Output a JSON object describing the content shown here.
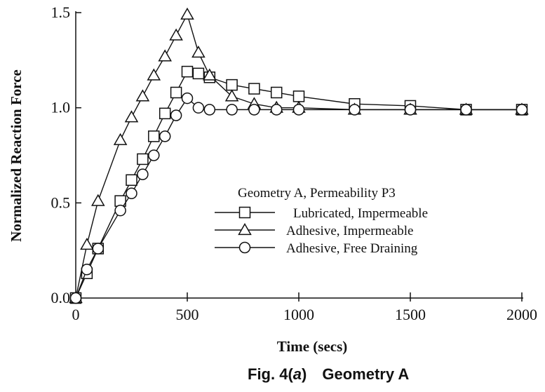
{
  "chart_data": {
    "type": "line",
    "title": "",
    "xlabel": "Time  (secs)",
    "ylabel": "Normalized Reaction Force",
    "xlim": [
      0,
      2000
    ],
    "ylim": [
      0,
      1.5
    ],
    "x_ticks": [
      "0",
      "500",
      "1000",
      "1500",
      "2000"
    ],
    "y_ticks": [
      "0.0",
      "0.5",
      "1.0",
      "1.5"
    ],
    "grid": false,
    "legend_title": "Geometry A, Permeability P3",
    "legend_position": "center-right",
    "series": [
      {
        "name": "Lubricated, Impermeable",
        "marker": "square",
        "x": [
          0,
          50,
          100,
          200,
          250,
          300,
          350,
          400,
          450,
          500,
          550,
          600,
          700,
          800,
          900,
          1000,
          1250,
          1500,
          1750,
          2000
        ],
        "y": [
          0.0,
          0.13,
          0.26,
          0.51,
          0.62,
          0.73,
          0.85,
          0.97,
          1.08,
          1.19,
          1.18,
          1.16,
          1.12,
          1.1,
          1.08,
          1.06,
          1.02,
          1.01,
          0.99,
          0.99
        ]
      },
      {
        "name": "Adhesive, Impermeable",
        "marker": "triangle",
        "x": [
          0,
          50,
          100,
          200,
          250,
          300,
          350,
          400,
          450,
          500,
          550,
          600,
          700,
          800,
          900,
          1000,
          1250,
          1500,
          1750,
          2000
        ],
        "y": [
          0.0,
          0.28,
          0.51,
          0.83,
          0.95,
          1.06,
          1.17,
          1.27,
          1.38,
          1.49,
          1.29,
          1.17,
          1.06,
          1.02,
          1.0,
          1.0,
          0.99,
          0.99,
          0.99,
          0.99
        ]
      },
      {
        "name": "Adhesive, Free Draining",
        "marker": "circle",
        "x": [
          0,
          50,
          100,
          200,
          250,
          300,
          350,
          400,
          450,
          500,
          550,
          600,
          700,
          800,
          900,
          1000,
          1250,
          1500,
          1750,
          2000
        ],
        "y": [
          0.0,
          0.15,
          0.26,
          0.46,
          0.55,
          0.65,
          0.75,
          0.85,
          0.96,
          1.05,
          1.0,
          0.99,
          0.99,
          0.99,
          0.99,
          0.99,
          0.99,
          0.99,
          0.99,
          0.99
        ]
      }
    ]
  },
  "caption": {
    "fig_label": "Fig. 4(",
    "fig_letter": "a",
    "fig_close": ")",
    "fig_title": "Geometry A"
  }
}
